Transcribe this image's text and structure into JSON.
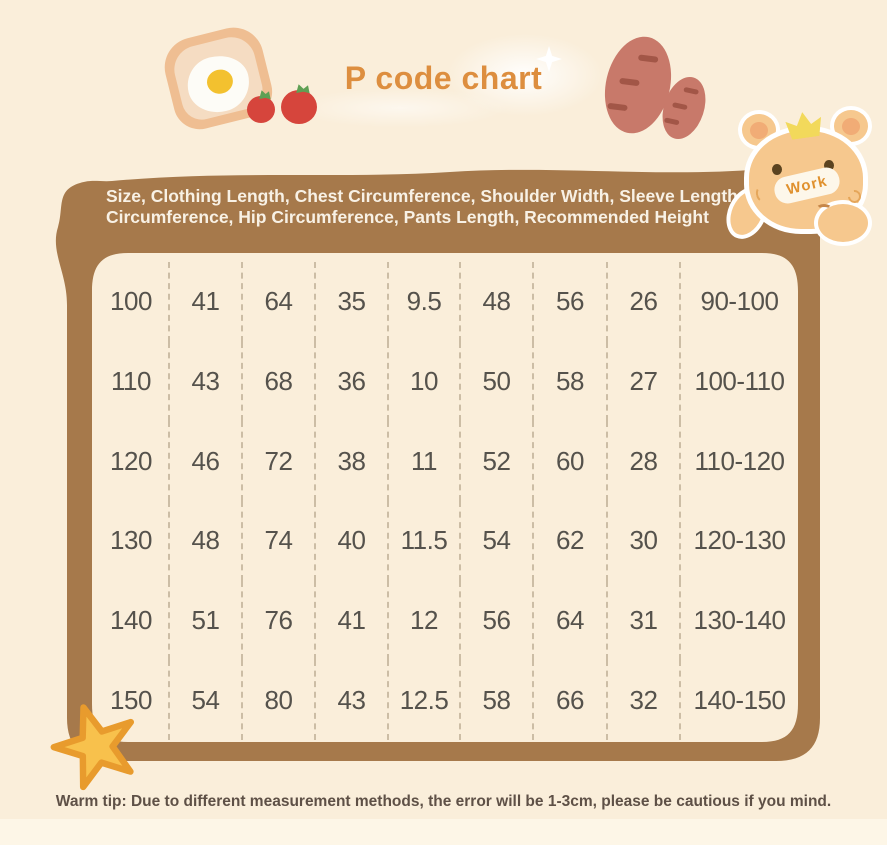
{
  "title": "P code chart",
  "header": {
    "text": "Size, Clothing Length, Chest Circumference, Shoulder Width, Sleeve Length, Waist Circumference, Hip Circumference, Pants Length, Recommended Height"
  },
  "table": {
    "columns": [
      "Size",
      "Clothing Length",
      "Chest Circumference",
      "Shoulder Width",
      "Sleeve Length",
      "Waist Circumference",
      "Hip Circumference",
      "Pants Length",
      "Recommended Height"
    ],
    "rows": [
      [
        "100",
        "41",
        "64",
        "35",
        "9.5",
        "48",
        "56",
        "26",
        "90-100"
      ],
      [
        "110",
        "43",
        "68",
        "36",
        "10",
        "50",
        "58",
        "27",
        "100-110"
      ],
      [
        "120",
        "46",
        "72",
        "38",
        "11",
        "52",
        "60",
        "28",
        "110-120"
      ],
      [
        "130",
        "48",
        "74",
        "40",
        "11.5",
        "54",
        "62",
        "30",
        "120-130"
      ],
      [
        "140",
        "51",
        "76",
        "41",
        "12",
        "56",
        "64",
        "31",
        "130-140"
      ],
      [
        "150",
        "54",
        "80",
        "43",
        "12.5",
        "58",
        "66",
        "32",
        "140-150"
      ]
    ]
  },
  "footer": {
    "tip": "Warm tip: Due to different measurement methods, the error will be 1-3cm, please be cautious if you mind."
  },
  "decorations": {
    "bear_label": "Work",
    "icons": [
      "toast-egg-icon",
      "tomato-icon",
      "sweet-potato-icon",
      "bear-icon",
      "crown-icon",
      "star-icon",
      "sparkle-icon"
    ]
  },
  "colors": {
    "background": "#FAEEDA",
    "background_bottom_band": "#FDF6E7",
    "frame_brown": "#A6794B",
    "panel_cream": "#FCF3E3",
    "title_orange": "#DD8E3F",
    "header_text": "#F8F1E5",
    "table_text": "#55524C",
    "divider_dash": "#CCBDA5",
    "tip_text": "#5E5046",
    "tomato_red": "#D6453C",
    "leaf_green": "#5FA054",
    "toast_crust": "#EFBE92",
    "toast_bread": "#F5DCC2",
    "egg_yolk": "#F3C12F",
    "sweet_potato": "#C8796A",
    "potato_mark": "#A25647",
    "bear_tan": "#F6C88E",
    "bear_inner_ear": "#F1AC76",
    "crown_yellow": "#F2D95B",
    "work_orange": "#E0912E",
    "star_yellow": "#F8C14C",
    "star_outline": "#E89B2D"
  }
}
